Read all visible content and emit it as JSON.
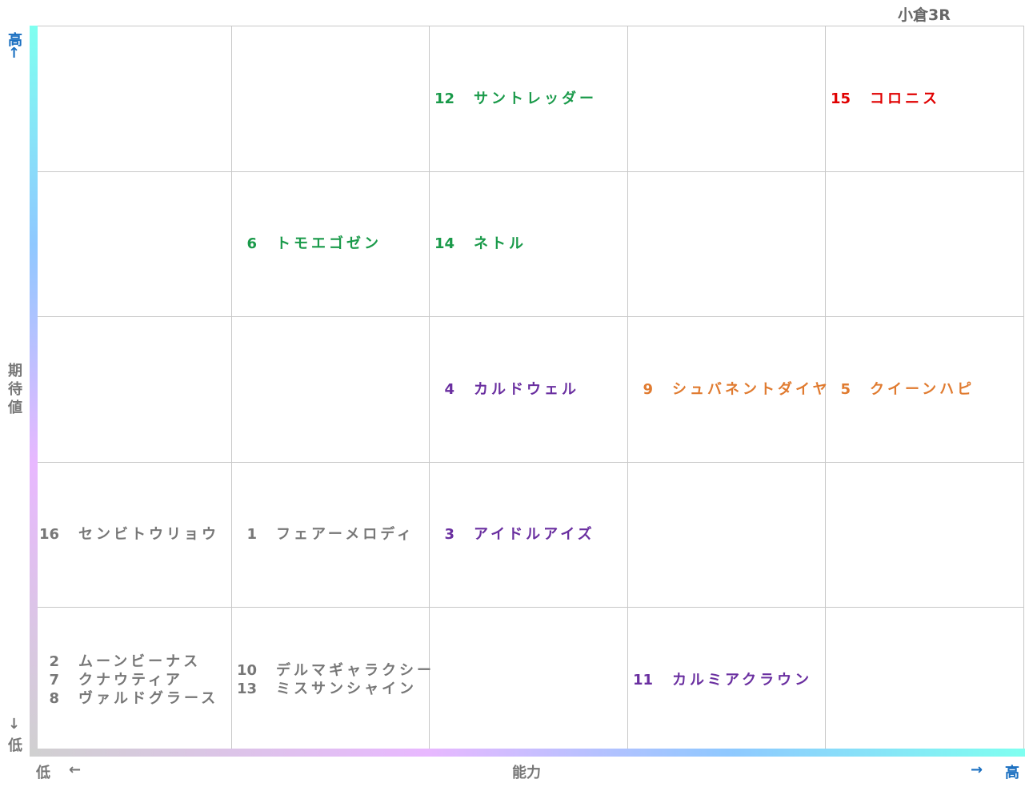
{
  "title": "小倉3R",
  "y_axis": {
    "high": "高",
    "high_arrow": "↑",
    "label": "期待値",
    "low_arrow": "↓",
    "low": "低"
  },
  "x_axis": {
    "low": "低",
    "low_arrow": "←",
    "label": "能力",
    "high_arrow": "→",
    "high": "高"
  },
  "grid": {
    "rows": [
      [
        [],
        [],
        [
          {
            "number": 12,
            "name": "サントレッダー",
            "color": "#1a9a4a"
          }
        ],
        [],
        [
          {
            "number": 15,
            "name": "コロニス",
            "color": "#e00000"
          }
        ]
      ],
      [
        [],
        [
          {
            "number": 6,
            "name": "トモエゴゼン",
            "color": "#1a9a4a"
          }
        ],
        [
          {
            "number": 14,
            "name": "ネトル",
            "color": "#1a9a4a"
          }
        ],
        [],
        []
      ],
      [
        [],
        [],
        [
          {
            "number": 4,
            "name": "カルドウェル",
            "color": "#6a2fa0"
          }
        ],
        [
          {
            "number": 9,
            "name": "シュバネントダイヤ",
            "color": "#e07b30"
          }
        ],
        [
          {
            "number": 5,
            "name": "クイーンハピ",
            "color": "#e07b30"
          }
        ]
      ],
      [
        [
          {
            "number": 16,
            "name": "センビトウリョウ",
            "color": "#777777"
          }
        ],
        [
          {
            "number": 1,
            "name": "フェアーメロディ",
            "color": "#777777"
          }
        ],
        [
          {
            "number": 3,
            "name": "アイドルアイズ",
            "color": "#6a2fa0"
          }
        ],
        [],
        []
      ],
      [
        [
          {
            "number": 2,
            "name": "ムーンビーナス",
            "color": "#777777"
          },
          {
            "number": 7,
            "name": "クナウティア",
            "color": "#777777"
          },
          {
            "number": 8,
            "name": "ヴァルドグラース",
            "color": "#777777"
          }
        ],
        [
          {
            "number": 10,
            "name": "デルマギャラクシー",
            "color": "#777777"
          },
          {
            "number": 13,
            "name": "ミスサンシャイン",
            "color": "#777777"
          }
        ],
        [],
        [
          {
            "number": 11,
            "name": "カルミアクラウン",
            "color": "#6a2fa0"
          }
        ],
        []
      ]
    ]
  }
}
